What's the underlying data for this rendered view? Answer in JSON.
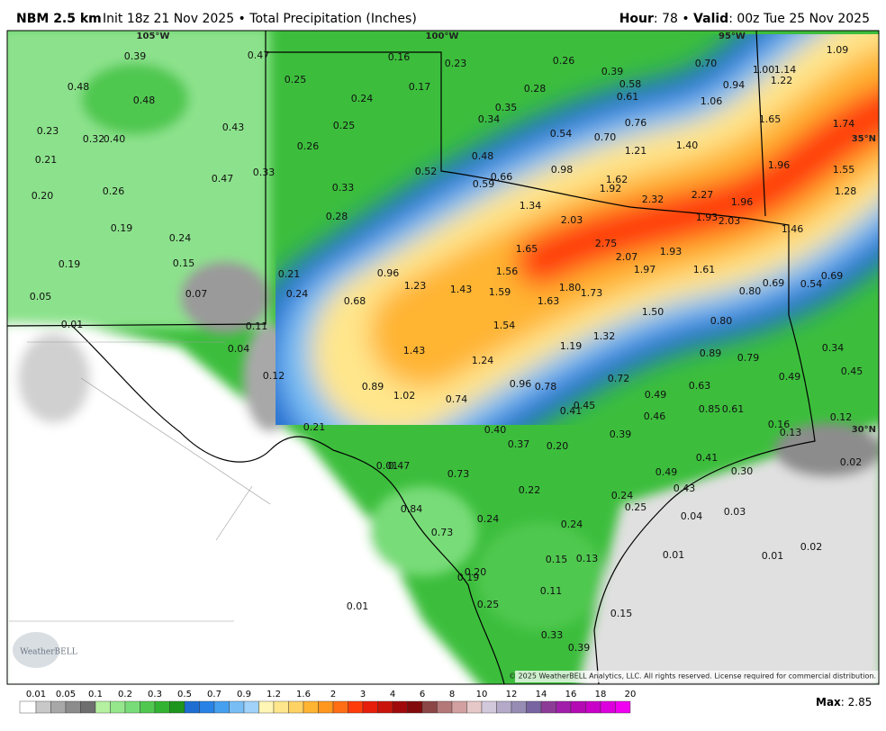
{
  "header": {
    "model": "NBM 2.5 km",
    "description": "Init 18z 21 Nov 2025 • Total Precipitation (Inches)",
    "hour_label": "Hour",
    "hour_text": ": 78 • ",
    "valid_label": "Valid",
    "valid_text": ": 00z Tue 25 Nov 2025"
  },
  "grid_labels": [
    "105°W",
    "100°W",
    "95°W",
    "35°N",
    "30°N"
  ],
  "point_labels": [
    "0.39",
    "0.47",
    "0.16",
    "0.23",
    "0.26",
    "0.39",
    "0.70",
    "1.09",
    "1.00",
    "1.14",
    "1.22",
    "0.48",
    "0.25",
    "0.17",
    "0.28",
    "0.58",
    "0.94",
    "0.48",
    "0.24",
    "0.61",
    "1.06",
    "0.35",
    "0.43",
    "0.25",
    "0.34",
    "0.76",
    "1.65",
    "1.74",
    "0.23",
    "0.32",
    "0.40",
    "0.54",
    "0.70",
    "0.26",
    "1.21",
    "1.40",
    "0.21",
    "0.48",
    "0.52",
    "0.98",
    "1.62",
    "1.96",
    "1.55",
    "0.33",
    "0.47",
    "0.59",
    "0.66",
    "1.92",
    "0.20",
    "0.26",
    "0.33",
    "2.32",
    "2.27",
    "1.96",
    "1.28",
    "1.34",
    "0.28",
    "2.03",
    "1.93",
    "2.03",
    "0.19",
    "1.46",
    "0.24",
    "2.75",
    "1.65",
    "1.93",
    "2.07",
    "0.19",
    "0.15",
    "0.96",
    "1.56",
    "1.97",
    "1.61",
    "0.21",
    "0.69",
    "0.69",
    "0.54",
    "1.23",
    "1.80",
    "0.07",
    "0.24",
    "1.43",
    "1.59",
    "1.73",
    "0.80",
    "0.05",
    "0.68",
    "1.63",
    "1.50",
    "0.01",
    "0.11",
    "1.54",
    "0.80",
    "1.32",
    "0.04",
    "1.43",
    "1.19",
    "0.34",
    "0.89",
    "0.79",
    "1.24",
    "0.45",
    "0.12",
    "0.72",
    "0.49",
    "0.89",
    "0.96",
    "0.78",
    "0.63",
    "1.02",
    "0.49",
    "0.74",
    "0.45",
    "0.41",
    "0.85",
    "0.61",
    "0.46",
    "0.12",
    "0.16",
    "0.21",
    "0.40",
    "0.13",
    "0.39",
    "0.37",
    "0.20",
    "0.01",
    "0.47",
    "0.02",
    "0.41",
    "0.30",
    "0.73",
    "0.49",
    "0.22",
    "0.43",
    "0.24",
    "0.84",
    "0.25",
    "0.04",
    "0.03",
    "0.24",
    "0.24",
    "0.73",
    "0.02",
    "0.01",
    "0.01",
    "0.15",
    "0.13",
    "0.20",
    "0.19",
    "0.11",
    "0.01",
    "0.25",
    "0.15",
    "0.33",
    "0.39"
  ],
  "logo": "WeatherBELL",
  "copyright": "© 2025 WeatherBELL Analytics, LLC. All rights reserved. License required for commercial distribution.",
  "legend": {
    "labels": [
      "0.01",
      "0.05",
      "0.1",
      "0.2",
      "0.3",
      "0.5",
      "0.7",
      "0.9",
      "1.2",
      "1.6",
      "2",
      "3",
      "4",
      "6",
      "8",
      "10",
      "12",
      "14",
      "16",
      "18",
      "20"
    ],
    "colors": [
      "#ffffff",
      "#c8c8c8",
      "#a8a8a8",
      "#8c8c8c",
      "#6e6e6e",
      "#b4f0a0",
      "#96e68c",
      "#78dc78",
      "#50c850",
      "#32b432",
      "#1e961e",
      "#1e6ed2",
      "#2882e6",
      "#46a0f0",
      "#78bef5",
      "#a0d2fa",
      "#fff5b4",
      "#ffe68c",
      "#ffd264",
      "#ffb432",
      "#ff961e",
      "#ff6e14",
      "#ff3c0a",
      "#e61e0a",
      "#c8140a",
      "#a00a0a",
      "#820a0a",
      "#8c4646",
      "#b47878",
      "#d2a0a0",
      "#e6c8c8",
      "#d2c8dc",
      "#b4aac8",
      "#968cb4",
      "#7864a0",
      "#8c3c96",
      "#a01eaa",
      "#b40ab4",
      "#c800c8",
      "#dc00dc",
      "#f000f0"
    ]
  },
  "max_label": "Max",
  "max_text": ": 2.85"
}
